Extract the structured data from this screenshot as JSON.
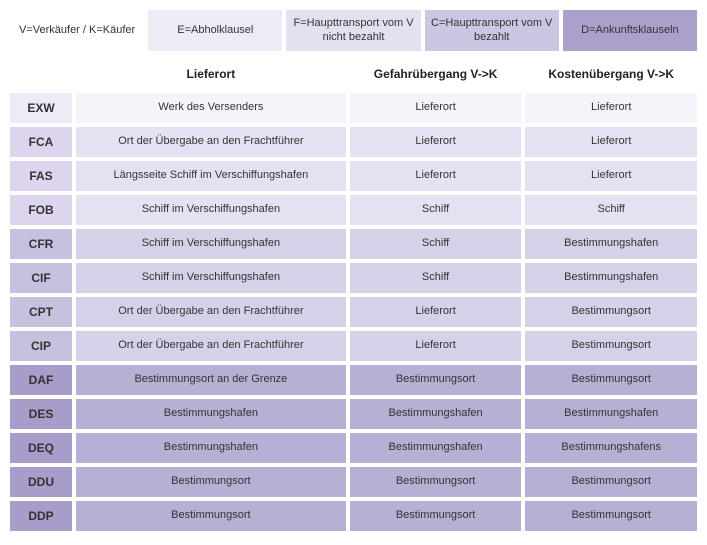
{
  "colors": {
    "legend_V": "#ffffff",
    "legend_E": "#eeebf6",
    "legend_F": "#e4e0f0",
    "legend_C": "#cdc6e2",
    "legend_D": "#aba0cc",
    "group_E_code": "#eeebf6",
    "group_E_cell": "#f6f4fb",
    "group_F_code": "#dcd5ed",
    "group_F_cell": "#e6e1f2",
    "group_C_code": "#c8c0df",
    "group_C_cell": "#d6d0e8",
    "group_D_code": "#a89cca",
    "group_D_cell": "#b8afd4"
  },
  "legend": [
    {
      "key": "V",
      "label": "V=Verkäufer / K=Käufer"
    },
    {
      "key": "E",
      "label": "E=Abholklausel"
    },
    {
      "key": "F",
      "label": "F=Haupttransport vom V nicht bezahlt"
    },
    {
      "key": "C",
      "label": "C=Haupttransport vom V bezahlt"
    },
    {
      "key": "D",
      "label": "D=Ankunftsklauseln"
    }
  ],
  "headers": {
    "lieferort": "Lieferort",
    "gefahr": "Gefahrübergang V->K",
    "kosten": "Kostenübergang V->K"
  },
  "rows": [
    {
      "group": "E",
      "code": "EXW",
      "lieferort": "Werk des Versenders",
      "gefahr": "Lieferort",
      "kosten": "Lieferort"
    },
    {
      "group": "F",
      "code": "FCA",
      "lieferort": "Ort der Übergabe an den Frachtführer",
      "gefahr": "Lieferort",
      "kosten": "Lieferort"
    },
    {
      "group": "F",
      "code": "FAS",
      "lieferort": "Längsseite Schiff im Verschiffungshafen",
      "gefahr": "Lieferort",
      "kosten": "Lieferort"
    },
    {
      "group": "F",
      "code": "FOB",
      "lieferort": "Schiff im Verschiffungshafen",
      "gefahr": "Schiff",
      "kosten": "Schiff"
    },
    {
      "group": "C",
      "code": "CFR",
      "lieferort": "Schiff im Verschiffungshafen",
      "gefahr": "Schiff",
      "kosten": "Bestimmungshafen"
    },
    {
      "group": "C",
      "code": "CIF",
      "lieferort": "Schiff im Verschiffungshafen",
      "gefahr": "Schiff",
      "kosten": "Bestimmungshafen"
    },
    {
      "group": "C",
      "code": "CPT",
      "lieferort": "Ort der Übergabe an den Frachtführer",
      "gefahr": "Lieferort",
      "kosten": "Bestimmungsort"
    },
    {
      "group": "C",
      "code": "CIP",
      "lieferort": "Ort der Übergabe an den Frachtführer",
      "gefahr": "Lieferort",
      "kosten": "Bestimmungsort"
    },
    {
      "group": "D",
      "code": "DAF",
      "lieferort": "Bestimmungsort an der Grenze",
      "gefahr": "Bestimmungsort",
      "kosten": "Bestimmungsort"
    },
    {
      "group": "D",
      "code": "DES",
      "lieferort": "Bestimmungshafen",
      "gefahr": "Bestimmungshafen",
      "kosten": "Bestimmungshafen"
    },
    {
      "group": "D",
      "code": "DEQ",
      "lieferort": "Bestimmungshafen",
      "gefahr": "Bestimmungshafen",
      "kosten": "Bestimmungshafens"
    },
    {
      "group": "D",
      "code": "DDU",
      "lieferort": "Bestimmungsort",
      "gefahr": "Bestimmungsort",
      "kosten": "Bestimmungsort"
    },
    {
      "group": "D",
      "code": "DDP",
      "lieferort": "Bestimmungsort",
      "gefahr": "Bestimmungsort",
      "kosten": "Bestimmungsort"
    }
  ]
}
